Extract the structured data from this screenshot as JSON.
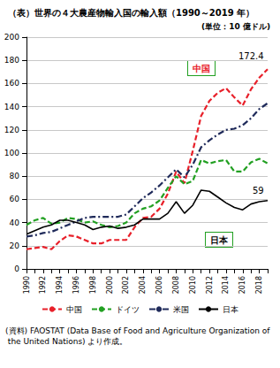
{
  "chart_data": {
    "type": "line",
    "title": "（表）世界の４大農産物輸入国の輸入額（1990～2019 年）",
    "subtitle": "(単位：10 億ドル)",
    "source": "(資料) FAOSTAT (Data Base of Food and Agriculture Organization of the United Nations) より作成。",
    "categories": [
      "1990",
      null,
      "1992",
      null,
      "1994",
      null,
      "1996",
      null,
      "1998",
      null,
      "2000",
      null,
      "2002",
      null,
      "2004",
      null,
      "2006",
      null,
      "2008",
      null,
      "2010",
      null,
      "2012",
      null,
      "2014",
      null,
      "2016",
      null,
      "2018",
      null
    ],
    "series": [
      {
        "name": "中国",
        "color": "#e8202a",
        "line_style": "dashed",
        "values": [
          17,
          18,
          19,
          17,
          24,
          29,
          28,
          25,
          22,
          22,
          25,
          25,
          25,
          36,
          44,
          45,
          52,
          65,
          84,
          74,
          102,
          132,
          145,
          152,
          156,
          148,
          141,
          155,
          165,
          172.4
        ]
      },
      {
        "name": "ドイツ",
        "color": "#22a022",
        "line_style": "dashed",
        "values": [
          38,
          42,
          44,
          39,
          40,
          44,
          43,
          40,
          41,
          38,
          36,
          37,
          40,
          48,
          52,
          54,
          59,
          70,
          80,
          73,
          76,
          94,
          91,
          93,
          94,
          84,
          84,
          92,
          95,
          91
        ]
      },
      {
        "name": "米国",
        "color": "#1f2a5a",
        "line_style": "dashdot",
        "values": [
          28,
          29,
          31,
          32,
          35,
          38,
          41,
          44,
          45,
          45,
          45,
          45,
          47,
          54,
          61,
          66,
          72,
          79,
          86,
          79,
          90,
          105,
          111,
          116,
          120,
          121,
          124,
          130,
          138,
          143
        ]
      },
      {
        "name": "日本",
        "color": "#000000",
        "line_style": "solid",
        "values": [
          30,
          33,
          36,
          38,
          42,
          42,
          40,
          38,
          34,
          36,
          37,
          35,
          36,
          38,
          43,
          43,
          43,
          48,
          58,
          48,
          55,
          68,
          67,
          62,
          57,
          53,
          51,
          56,
          58,
          59
        ]
      }
    ],
    "annotations": [
      "172.4",
      "59",
      "中国",
      "日本"
    ],
    "ylim": [
      0,
      200
    ],
    "yticks": [
      0,
      20,
      40,
      60,
      80,
      100,
      120,
      140,
      160,
      180,
      200
    ],
    "grid": true,
    "legend": "bottom"
  }
}
